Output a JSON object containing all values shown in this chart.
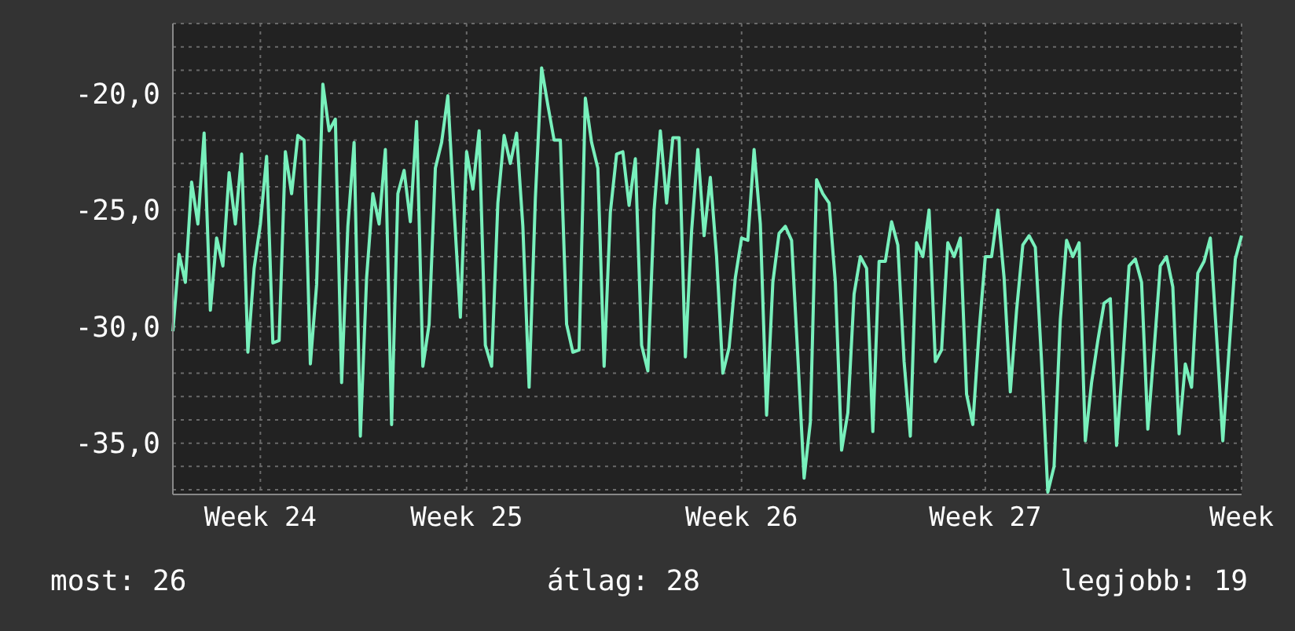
{
  "chart_data": {
    "type": "line",
    "categories": [
      null,
      null,
      null,
      null,
      null,
      null,
      null,
      null,
      null,
      null,
      null,
      null,
      null,
      null,
      "Week 24",
      null,
      null,
      null,
      null,
      null,
      null,
      null,
      null,
      null,
      null,
      null,
      null,
      null,
      null,
      null,
      null,
      null,
      null,
      null,
      null,
      null,
      null,
      null,
      null,
      null,
      null,
      null,
      null,
      null,
      null,
      null,
      null,
      "Week 25",
      null,
      null,
      null,
      null,
      null,
      null,
      null,
      null,
      null,
      null,
      null,
      null,
      null,
      null,
      null,
      null,
      null,
      null,
      null,
      null,
      null,
      null,
      null,
      null,
      null,
      null,
      null,
      null,
      null,
      null,
      null,
      null,
      null,
      null,
      null,
      null,
      null,
      null,
      null,
      null,
      null,
      null,
      null,
      "Week 26",
      null,
      null,
      null,
      null,
      null,
      null,
      null,
      null,
      null,
      null,
      null,
      null,
      null,
      null,
      null,
      null,
      null,
      null,
      null,
      null,
      null,
      null,
      null,
      null,
      null,
      null,
      null,
      null,
      null,
      null,
      null,
      null,
      null,
      null,
      null,
      null,
      null,
      null,
      "Week 27",
      null,
      null,
      null,
      null,
      null,
      null,
      null,
      null,
      null,
      null,
      null,
      null,
      null,
      null,
      null,
      null,
      null,
      null,
      null,
      null,
      null,
      null,
      null,
      null,
      null,
      null,
      null,
      null,
      null,
      null,
      null,
      null,
      null,
      null,
      null,
      null,
      null,
      null,
      null,
      null,
      "Week"
    ],
    "series": [
      {
        "color": "#78f0bc",
        "values": [
          -30.2,
          -26.9,
          -28.1,
          -23.8,
          -25.6,
          -21.7,
          -29.3,
          -26.2,
          -27.4,
          -23.4,
          -25.6,
          -22.6,
          -31.1,
          -27.5,
          -25.6,
          -22.7,
          -30.7,
          -30.6,
          -22.5,
          -24.3,
          -21.8,
          -22.0,
          -31.6,
          -28.2,
          -19.6,
          -21.6,
          -21.1,
          -32.4,
          -25.7,
          -22.1,
          -34.7,
          -27.9,
          -24.3,
          -25.6,
          -22.4,
          -34.2,
          -24.3,
          -23.3,
          -25.5,
          -21.2,
          -31.7,
          -29.9,
          -23.2,
          -22.1,
          -20.1,
          -25.0,
          -29.6,
          -22.5,
          -24.1,
          -21.6,
          -30.8,
          -31.7,
          -24.7,
          -21.8,
          -23.0,
          -21.7,
          -25.7,
          -32.6,
          -24.5,
          -18.9,
          -20.5,
          -22.0,
          -22.0,
          -29.9,
          -31.1,
          -31.0,
          -20.2,
          -22.1,
          -23.2,
          -31.7,
          -25.1,
          -22.6,
          -22.5,
          -24.8,
          -22.8,
          -30.8,
          -31.9,
          -25.0,
          -21.6,
          -24.7,
          -21.9,
          -21.9,
          -31.3,
          -25.9,
          -22.4,
          -26.1,
          -23.6,
          -27.0,
          -32.0,
          -30.9,
          -27.9,
          -26.2,
          -26.3,
          -22.4,
          -25.6,
          -33.8,
          -28.1,
          -26.0,
          -25.7,
          -26.3,
          -31.3,
          -36.5,
          -34.1,
          -23.7,
          -24.3,
          -24.7,
          -28.1,
          -35.3,
          -33.7,
          -28.6,
          -27.0,
          -27.5,
          -34.5,
          -27.2,
          -27.2,
          -25.5,
          -26.5,
          -31.5,
          -34.7,
          -26.4,
          -27.0,
          -25.0,
          -31.5,
          -31.0,
          -26.4,
          -27.0,
          -26.2,
          -32.9,
          -34.2,
          -30.2,
          -27.0,
          -27.0,
          -25.0,
          -27.9,
          -32.8,
          -29.3,
          -26.5,
          -26.1,
          -26.6,
          -31.5,
          -37.1,
          -36.0,
          -29.7,
          -26.3,
          -27.0,
          -26.4,
          -34.9,
          -32.4,
          -30.6,
          -29.0,
          -28.8,
          -35.1,
          -31.5,
          -27.4,
          -27.1,
          -28.1,
          -34.4,
          -31.0,
          -27.4,
          -27.0,
          -28.3,
          -34.6,
          -31.6,
          -32.6,
          -27.7,
          -27.2,
          -26.2,
          -30.4,
          -34.9,
          -31.0,
          -27.1,
          -26.1
        ]
      }
    ],
    "ylim": [
      -37.2,
      -17.0
    ],
    "yticks": [
      {
        "value": -37,
        "label": null
      },
      {
        "value": -36,
        "label": null
      },
      {
        "value": -35,
        "label": "-35,0"
      },
      {
        "value": -34,
        "label": null
      },
      {
        "value": -33,
        "label": null
      },
      {
        "value": -32,
        "label": null
      },
      {
        "value": -31,
        "label": null
      },
      {
        "value": -30,
        "label": "-30,0"
      },
      {
        "value": -29,
        "label": null
      },
      {
        "value": -28,
        "label": null
      },
      {
        "value": -27,
        "label": null
      },
      {
        "value": -26,
        "label": null
      },
      {
        "value": -25,
        "label": "-25,0"
      },
      {
        "value": -24,
        "label": null
      },
      {
        "value": -23,
        "label": null
      },
      {
        "value": -22,
        "label": null
      },
      {
        "value": -21,
        "label": null
      },
      {
        "value": -20,
        "label": "-20,0"
      },
      {
        "value": -19,
        "label": null
      },
      {
        "value": -18,
        "label": null
      },
      {
        "value": -17,
        "label": null
      }
    ],
    "grid": true,
    "annotations": [
      "most: 26",
      "átlag: 28",
      "legjobb: 19"
    ]
  }
}
